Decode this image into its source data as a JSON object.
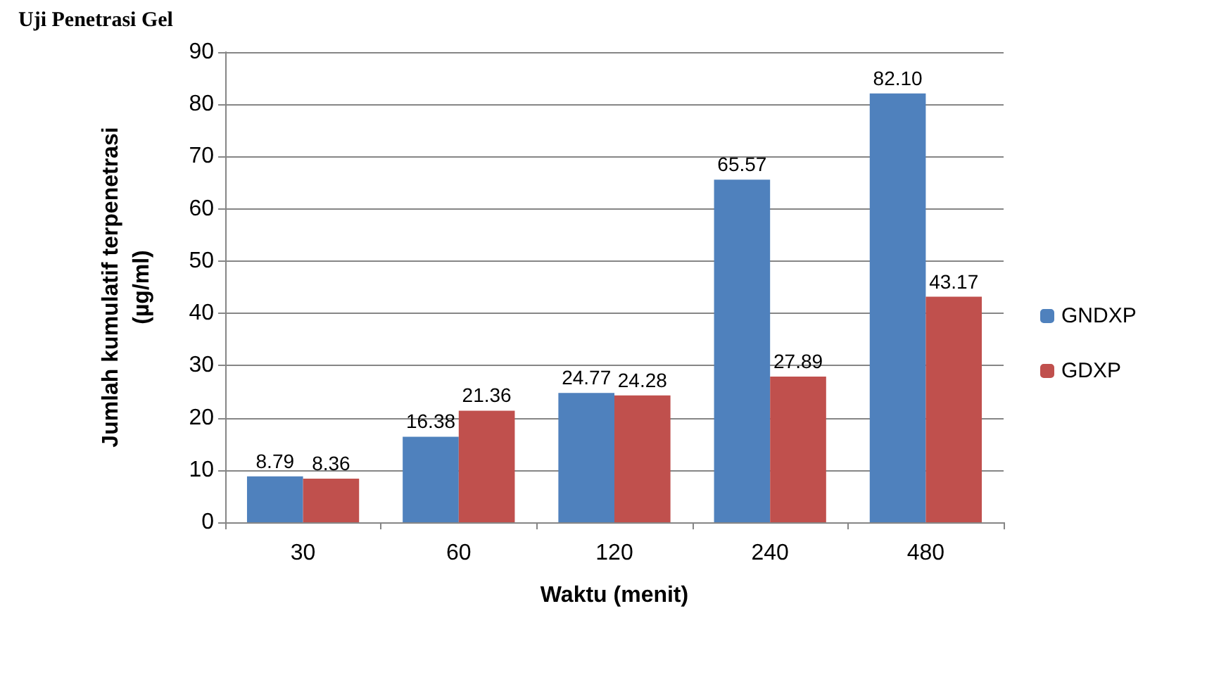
{
  "chart_data": {
    "type": "bar",
    "title": "Uji Penetrasi Gel",
    "xlabel": "Waktu (menit)",
    "ylabel": "Jumlah kumulatif terpenetrasi\n(µg/ml)",
    "categories": [
      "30",
      "60",
      "120",
      "240",
      "480"
    ],
    "series": [
      {
        "name": "GNDXP",
        "color": "#4f81bd",
        "values": [
          8.79,
          16.38,
          24.77,
          65.57,
          82.1
        ],
        "value_labels": [
          "8.79",
          "16.38",
          "24.77",
          "65.57",
          "82.10"
        ]
      },
      {
        "name": "GDXP",
        "color": "#c0504d",
        "values": [
          8.36,
          21.36,
          24.28,
          27.89,
          43.17
        ],
        "value_labels": [
          "8.36",
          "21.36",
          "24.28",
          "27.89",
          "43.17"
        ]
      }
    ],
    "ylim": [
      0,
      90
    ],
    "yticks": [
      0,
      10,
      20,
      30,
      40,
      50,
      60,
      70,
      80,
      90
    ],
    "grid": "y",
    "legend": "right"
  }
}
